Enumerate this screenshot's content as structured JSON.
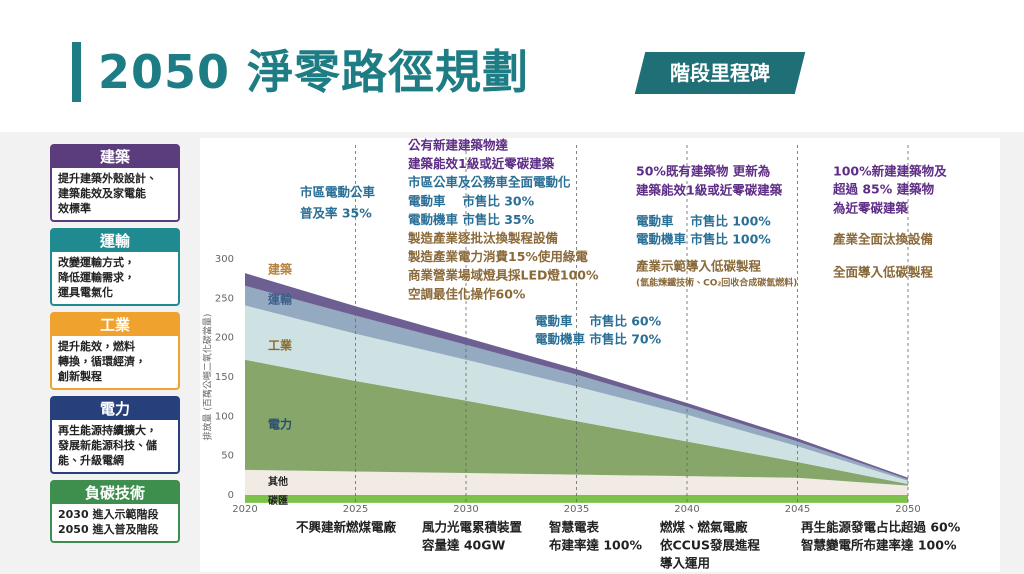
{
  "header": {
    "title": "2050 淨零路徑規劃",
    "badge": "階段里程碑"
  },
  "sidebar": [
    {
      "title": "建築",
      "lines": [
        "提升建築外殼設計、",
        "建築能效及家電能",
        "效標準"
      ]
    },
    {
      "title": "運輸",
      "lines": [
        "改變運輸方式，",
        "降低運輸需求，",
        "運具電氣化"
      ]
    },
    {
      "title": "工業",
      "lines": [
        "提升能效，燃料",
        "轉換，循環經濟，",
        "創新製程"
      ]
    },
    {
      "title": "電力",
      "lines": [
        "再生能源持續擴大，",
        "發展新能源科技、儲",
        "能、升級電網"
      ]
    },
    {
      "title": "負碳技術",
      "lines": [
        "2030 進入示範階段",
        "2050 進入普及階段"
      ]
    }
  ],
  "chart_data": {
    "type": "area",
    "stacked": true,
    "y_label": "排放量 (百萬公噸二氧化碳當量)",
    "x": [
      2020,
      2025,
      2030,
      2035,
      2040,
      2045,
      2050
    ],
    "xlim": [
      2020,
      2050
    ],
    "xticks": [
      2020,
      2025,
      2030,
      2035,
      2040,
      2045,
      2050
    ],
    "ylim": [
      -12,
      300
    ],
    "yticks": [
      0,
      50,
      100,
      150,
      200,
      250,
      300
    ],
    "series": [
      {
        "name": "碳匯",
        "color": "#7cc24a",
        "values": [
          -10,
          -10,
          -10,
          -10,
          -10,
          -10,
          -10
        ]
      },
      {
        "name": "其他",
        "color": "#f1ebe4",
        "values": [
          32,
          30,
          28,
          26,
          24,
          22,
          12
        ]
      },
      {
        "name": "電力",
        "color": "#86a66a",
        "values": [
          140,
          115,
          92,
          68,
          44,
          20,
          2
        ]
      },
      {
        "name": "工業",
        "color": "#cfe2e3",
        "values": [
          69,
          60,
          52,
          44,
          34,
          20,
          4
        ]
      },
      {
        "name": "運輸",
        "color": "#93aac0",
        "values": [
          25,
          23,
          19,
          15,
          10,
          6,
          2
        ]
      },
      {
        "name": "建築",
        "color": "#6e5f92",
        "values": [
          16,
          12,
          9,
          7,
          5,
          4,
          2
        ]
      }
    ]
  },
  "annotations": {
    "top": [
      {
        "lines": [
          "市區電動公車",
          "普及率 35%"
        ]
      },
      {
        "lines": [
          "公有新建建築物達",
          "建築能效1級或近零碳建築",
          "市區公車及公務車全面電動化",
          "電動車　 市售比 30%",
          "電動機車 市售比 35%",
          "製造產業逐批汰換製程設備",
          "製造產業電力消費15%使用綠電",
          "商業營業場域燈具採LED燈100%",
          "空調最佳化操作60%"
        ]
      },
      {
        "lines": [
          "電動車　 市售比 60%",
          "電動機車 市售比 70%"
        ]
      },
      {
        "lines": [
          "50%既有建築物 更新為",
          "建築能效1級或近零碳建築",
          "電動車　 市售比 100%",
          "電動機車 市售比 100%",
          "產業示範導入低碳製程",
          "(氫能煉鐵技術、CO₂回收合成碳氫燃料)"
        ]
      },
      {
        "lines": [
          "100%新建建築物及",
          "超過 85% 建築物",
          "為近零碳建築",
          "產業全面汰換設備",
          "全面導入低碳製程"
        ]
      }
    ],
    "bottom": [
      {
        "lines": [
          "不興建新燃煤電廠"
        ]
      },
      {
        "lines": [
          "風力光電累積裝置",
          "容量達 40GW"
        ]
      },
      {
        "lines": [
          "智慧電表",
          "布建率達 100%"
        ]
      },
      {
        "lines": [
          "燃煤、燃氣電廠",
          "依CCUS發展進程",
          "導入運用"
        ]
      },
      {
        "lines": [
          "再生能源發電占比超過 60%",
          "智慧變電所布建率達 100%"
        ]
      }
    ]
  }
}
